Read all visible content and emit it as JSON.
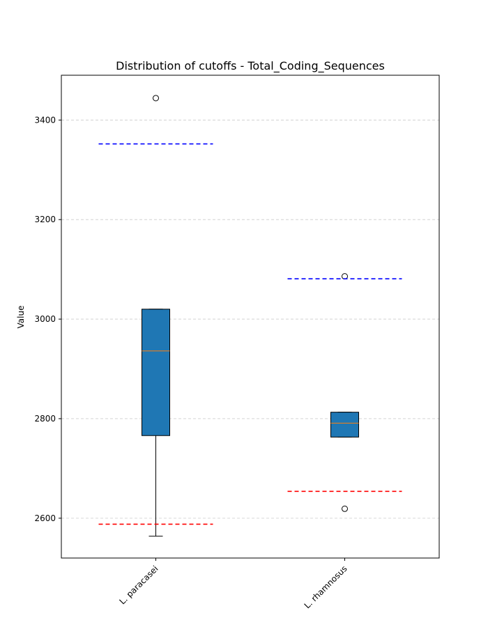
{
  "chart_data": {
    "type": "box",
    "title": "Distribution of cutoffs - Total_Coding_Sequences",
    "xlabel": "",
    "ylabel": "Value",
    "ylim": [
      2520,
      3490
    ],
    "yticks": [
      2600,
      2800,
      3000,
      3200,
      3400
    ],
    "grid": "y-dashed",
    "categories": [
      "L. paracasei",
      "L. rhamnosus"
    ],
    "boxes": [
      {
        "category": "L. paracasei",
        "whisker_low": 2564,
        "q1": 2766,
        "median": 2936,
        "q3": 3020,
        "whisker_high": 3020,
        "outliers": [
          3444
        ],
        "upper_cutoff": 3352,
        "lower_cutoff": 2588
      },
      {
        "category": "L. rhamnosus",
        "whisker_low": 2763,
        "q1": 2763,
        "median": 2791,
        "q3": 2813,
        "whisker_high": 2813,
        "outliers": [
          3086,
          2619
        ],
        "upper_cutoff": 3081,
        "lower_cutoff": 2654
      }
    ],
    "colors": {
      "box_fill": "#1f77b4",
      "median": "#ff7f0e",
      "upper_cutoff": "#0000ff",
      "lower_cutoff": "#ff0000",
      "grid": "#cccccc"
    }
  }
}
